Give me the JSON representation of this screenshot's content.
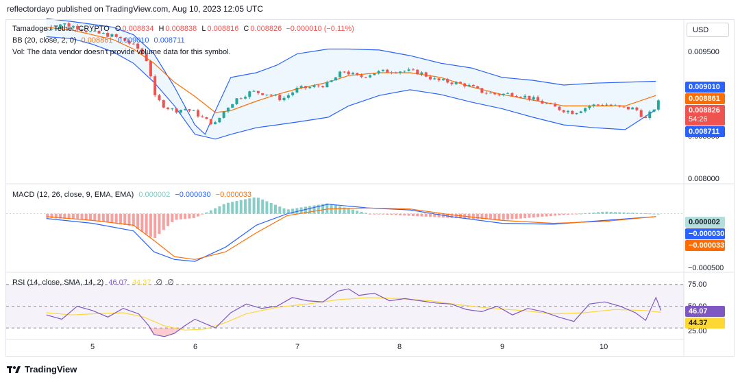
{
  "header": {
    "text": "reflectordayo published on TradingView.com, Aug 10, 2023 12:05 UTC"
  },
  "currency": "USD",
  "footer": {
    "brand": "TradingView"
  },
  "legend": {
    "symbol": "Tamadoge / Tether, CRYPTO",
    "o_label": "O",
    "o": "0.008834",
    "h_label": "H",
    "h": "0.008838",
    "l_label": "L",
    "l": "0.008816",
    "c_label": "C",
    "c": "0.008826",
    "change": "−0.000010 (−0.11%)",
    "bb_label": "BB (20, close, 2, 0)",
    "bb_mid": "0.008861",
    "bb_up": "0.009010",
    "bb_low": "0.008711",
    "vol_text": "Vol: The data vendor doesn't provide volume data for this symbol.",
    "macd_label": "MACD (12, 26, close, 9, EMA, EMA)",
    "macd_hist": "0.000002",
    "macd_line": "−0.000030",
    "macd_signal": "−0.000033",
    "rsi_label": "RSI (14, close, SMA, 14, 2)",
    "rsi": "46.07",
    "rsi_ma": "44.37",
    "rsi_x1": "∅",
    "rsi_x2": "∅"
  },
  "axis": {
    "price_ticks": [
      "0.009500",
      "0.009000",
      "0.008500",
      "0.008000"
    ],
    "macd_ticks": [
      "−0.000500"
    ],
    "rsi_ticks": [
      "75.00",
      "50.00",
      "25.00"
    ],
    "x_ticks": [
      "5",
      "6",
      "7",
      "8",
      "9",
      "10"
    ]
  },
  "tags": {
    "bb_up": "0.009010",
    "bb_mid": "0.008861",
    "close": "0.008826",
    "countdown": "54:26",
    "bb_low": "0.008711",
    "macd_hist": "0.000002",
    "macd_line": "−0.000030",
    "macd_signal": "−0.000033",
    "rsi": "46.07",
    "rsi_ma": "44.37"
  },
  "colors": {
    "up": "#26a69a",
    "down": "#ef5350",
    "bb_band": "#2962ff",
    "bb_basis": "#ff6d00",
    "bb_fill": "#2196f3",
    "macd_line": "#2962ff",
    "macd_signal": "#ff6d00",
    "rsi": "#7e57c2",
    "rsi_ma": "#fdd835"
  },
  "chart_data": [
    {
      "type": "candlestick",
      "title": "Tamadoge / Tether, CRYPTO",
      "x": [
        "5",
        "6",
        "7",
        "8",
        "9",
        "10"
      ],
      "ylim": [
        0.00795,
        0.00965
      ],
      "series": [
        {
          "name": "BB upper",
          "points": [
            [
              4.55,
              0.00967
            ],
            [
              4.8,
              0.00964
            ],
            [
              5.0,
              0.00961
            ],
            [
              5.2,
              0.00958
            ],
            [
              5.4,
              0.0095
            ],
            [
              5.6,
              0.0093
            ],
            [
              5.8,
              0.00895
            ],
            [
              6.0,
              0.00855
            ],
            [
              6.1,
              0.00845
            ],
            [
              6.2,
              0.0087
            ],
            [
              6.35,
              0.00905
            ],
            [
              6.6,
              0.0091
            ],
            [
              6.8,
              0.00918
            ],
            [
              7.0,
              0.0093
            ],
            [
              7.3,
              0.00935
            ],
            [
              7.5,
              0.00935
            ],
            [
              7.8,
              0.00934
            ],
            [
              8.1,
              0.00928
            ],
            [
              8.4,
              0.0092
            ],
            [
              8.7,
              0.00915
            ],
            [
              9.0,
              0.00905
            ],
            [
              9.3,
              0.00902
            ],
            [
              9.6,
              0.00897
            ],
            [
              9.9,
              0.00899
            ],
            [
              10.2,
              0.009
            ],
            [
              10.5,
              0.00901
            ]
          ]
        },
        {
          "name": "BB basis",
          "points": [
            [
              4.55,
              0.00958
            ],
            [
              4.8,
              0.00955
            ],
            [
              5.0,
              0.0095
            ],
            [
              5.2,
              0.00945
            ],
            [
              5.4,
              0.00935
            ],
            [
              5.6,
              0.0092
            ],
            [
              5.8,
              0.009
            ],
            [
              6.0,
              0.00885
            ],
            [
              6.2,
              0.00868
            ],
            [
              6.35,
              0.0087
            ],
            [
              6.6,
              0.0088
            ],
            [
              6.8,
              0.00887
            ],
            [
              7.0,
              0.00893
            ],
            [
              7.3,
              0.009
            ],
            [
              7.5,
              0.00907
            ],
            [
              7.8,
              0.0091
            ],
            [
              8.1,
              0.0091
            ],
            [
              8.4,
              0.00905
            ],
            [
              8.7,
              0.00895
            ],
            [
              9.0,
              0.00887
            ],
            [
              9.3,
              0.00881
            ],
            [
              9.6,
              0.00875
            ],
            [
              9.9,
              0.00875
            ],
            [
              10.2,
              0.00875
            ],
            [
              10.5,
              0.00886
            ]
          ]
        },
        {
          "name": "BB lower",
          "points": [
            [
              4.55,
              0.00948
            ],
            [
              4.8,
              0.00946
            ],
            [
              5.0,
              0.0094
            ],
            [
              5.2,
              0.00932
            ],
            [
              5.4,
              0.0092
            ],
            [
              5.6,
              0.009
            ],
            [
              5.8,
              0.00875
            ],
            [
              6.0,
              0.00845
            ],
            [
              6.2,
              0.0084
            ],
            [
              6.35,
              0.00845
            ],
            [
              6.6,
              0.00852
            ],
            [
              6.8,
              0.00855
            ],
            [
              7.0,
              0.00858
            ],
            [
              7.3,
              0.00863
            ],
            [
              7.5,
              0.00875
            ],
            [
              7.8,
              0.00886
            ],
            [
              8.1,
              0.00892
            ],
            [
              8.4,
              0.00887
            ],
            [
              8.7,
              0.00879
            ],
            [
              9.0,
              0.00872
            ],
            [
              9.3,
              0.00863
            ],
            [
              9.6,
              0.00855
            ],
            [
              9.9,
              0.00852
            ],
            [
              10.2,
              0.0085
            ],
            [
              10.5,
              0.00871
            ]
          ]
        },
        {
          "name": "Close",
          "points": [
            [
              4.55,
              0.00955
            ],
            [
              4.7,
              0.00962
            ],
            [
              4.85,
              0.00958
            ],
            [
              5.0,
              0.00952
            ],
            [
              5.15,
              0.0095
            ],
            [
              5.3,
              0.00945
            ],
            [
              5.45,
              0.00935
            ],
            [
              5.55,
              0.0092
            ],
            [
              5.6,
              0.00885
            ],
            [
              5.7,
              0.00875
            ],
            [
              5.8,
              0.0087
            ],
            [
              5.9,
              0.00872
            ],
            [
              6.0,
              0.00868
            ],
            [
              6.1,
              0.0086
            ],
            [
              6.2,
              0.00856
            ],
            [
              6.3,
              0.00872
            ],
            [
              6.4,
              0.00882
            ],
            [
              6.55,
              0.0089
            ],
            [
              6.7,
              0.00888
            ],
            [
              6.85,
              0.00882
            ],
            [
              7.0,
              0.00893
            ],
            [
              7.15,
              0.00895
            ],
            [
              7.3,
              0.00898
            ],
            [
              7.45,
              0.00912
            ],
            [
              7.6,
              0.00905
            ],
            [
              7.75,
              0.0091
            ],
            [
              7.9,
              0.00912
            ],
            [
              8.05,
              0.00912
            ],
            [
              8.2,
              0.0091
            ],
            [
              8.35,
              0.00902
            ],
            [
              8.5,
              0.009
            ],
            [
              8.65,
              0.00897
            ],
            [
              8.8,
              0.0089
            ],
            [
              8.95,
              0.00887
            ],
            [
              9.1,
              0.00888
            ],
            [
              9.25,
              0.00884
            ],
            [
              9.4,
              0.00878
            ],
            [
              9.55,
              0.00872
            ],
            [
              9.7,
              0.00868
            ],
            [
              9.85,
              0.00875
            ],
            [
              10.0,
              0.00877
            ],
            [
              10.15,
              0.00873
            ],
            [
              10.3,
              0.00872
            ],
            [
              10.4,
              0.00861
            ],
            [
              10.5,
              0.00875
            ],
            [
              10.55,
              0.00883
            ]
          ]
        }
      ]
    },
    {
      "type": "line",
      "title": "MACD (12, 26, close, 9, EMA, EMA)",
      "x": [
        "5",
        "6",
        "7",
        "8",
        "9",
        "10"
      ],
      "ylim": [
        -0.0006,
        0.0003
      ],
      "series": [
        {
          "name": "MACD",
          "points": [
            [
              4.55,
              -5e-05
            ],
            [
              5.0,
              -0.0001
            ],
            [
              5.4,
              -0.00018
            ],
            [
              5.6,
              -0.0004
            ],
            [
              5.8,
              -0.00048
            ],
            [
              6.0,
              -0.0005
            ],
            [
              6.3,
              -0.00035
            ],
            [
              6.6,
              -0.00012
            ],
            [
              6.9,
              0.0
            ],
            [
              7.3,
              0.0001
            ],
            [
              7.7,
              6e-05
            ],
            [
              8.1,
              4e-05
            ],
            [
              8.5,
              -3e-05
            ],
            [
              9.0,
              -0.0001
            ],
            [
              9.5,
              -0.00011
            ],
            [
              10.0,
              -7e-05
            ],
            [
              10.5,
              -3e-05
            ]
          ]
        },
        {
          "name": "Signal",
          "points": [
            [
              4.55,
              -3e-05
            ],
            [
              5.0,
              -7e-05
            ],
            [
              5.4,
              -0.00012
            ],
            [
              5.6,
              -0.00028
            ],
            [
              5.8,
              -0.00045
            ],
            [
              6.0,
              -0.00048
            ],
            [
              6.3,
              -0.0004
            ],
            [
              6.6,
              -0.0002
            ],
            [
              6.9,
              -2e-05
            ],
            [
              7.3,
              5e-05
            ],
            [
              7.7,
              6e-05
            ],
            [
              8.1,
              5e-05
            ],
            [
              8.5,
              -1e-05
            ],
            [
              9.0,
              -7e-05
            ],
            [
              9.5,
              -0.0001
            ],
            [
              10.0,
              -8e-05
            ],
            [
              10.5,
              -3e-05
            ]
          ]
        }
      ]
    },
    {
      "type": "line",
      "title": "RSI (14, close, SMA, 14, 2)",
      "x": [
        "5",
        "6",
        "7",
        "8",
        "9",
        "10"
      ],
      "ylim": [
        20,
        80
      ],
      "series": [
        {
          "name": "RSI",
          "points": [
            [
              4.55,
              42
            ],
            [
              4.7,
              38
            ],
            [
              4.85,
              50
            ],
            [
              5.0,
              46
            ],
            [
              5.15,
              40
            ],
            [
              5.3,
              48
            ],
            [
              5.45,
              43
            ],
            [
              5.55,
              32
            ],
            [
              5.6,
              24
            ],
            [
              5.7,
              22
            ],
            [
              5.8,
              25
            ],
            [
              5.9,
              32
            ],
            [
              6.0,
              38
            ],
            [
              6.1,
              34
            ],
            [
              6.2,
              30
            ],
            [
              6.35,
              44
            ],
            [
              6.5,
              52
            ],
            [
              6.65,
              48
            ],
            [
              6.8,
              50
            ],
            [
              6.95,
              58
            ],
            [
              7.1,
              55
            ],
            [
              7.25,
              54
            ],
            [
              7.4,
              64
            ],
            [
              7.5,
              66
            ],
            [
              7.6,
              60
            ],
            [
              7.75,
              62
            ],
            [
              7.9,
              55
            ],
            [
              8.05,
              57
            ],
            [
              8.2,
              55
            ],
            [
              8.35,
              53
            ],
            [
              8.5,
              52
            ],
            [
              8.65,
              47
            ],
            [
              8.8,
              45
            ],
            [
              8.95,
              50
            ],
            [
              9.1,
              42
            ],
            [
              9.25,
              48
            ],
            [
              9.4,
              45
            ],
            [
              9.55,
              40
            ],
            [
              9.7,
              36
            ],
            [
              9.85,
              52
            ],
            [
              10.0,
              54
            ],
            [
              10.15,
              50
            ],
            [
              10.3,
              44
            ],
            [
              10.4,
              37
            ],
            [
              10.5,
              58
            ],
            [
              10.55,
              46
            ]
          ]
        },
        {
          "name": "RSI MA",
          "points": [
            [
              4.55,
              44
            ],
            [
              4.8,
              42
            ],
            [
              5.0,
              43
            ],
            [
              5.3,
              44
            ],
            [
              5.5,
              40
            ],
            [
              5.7,
              32
            ],
            [
              5.9,
              28
            ],
            [
              6.1,
              29
            ],
            [
              6.3,
              35
            ],
            [
              6.5,
              43
            ],
            [
              6.8,
              49
            ],
            [
              7.1,
              52
            ],
            [
              7.4,
              56
            ],
            [
              7.7,
              58
            ],
            [
              8.0,
              57
            ],
            [
              8.3,
              55
            ],
            [
              8.6,
              51
            ],
            [
              8.9,
              48
            ],
            [
              9.2,
              46
            ],
            [
              9.5,
              43
            ],
            [
              9.8,
              44
            ],
            [
              10.1,
              47
            ],
            [
              10.4,
              46
            ],
            [
              10.55,
              44.4
            ]
          ]
        }
      ]
    }
  ]
}
